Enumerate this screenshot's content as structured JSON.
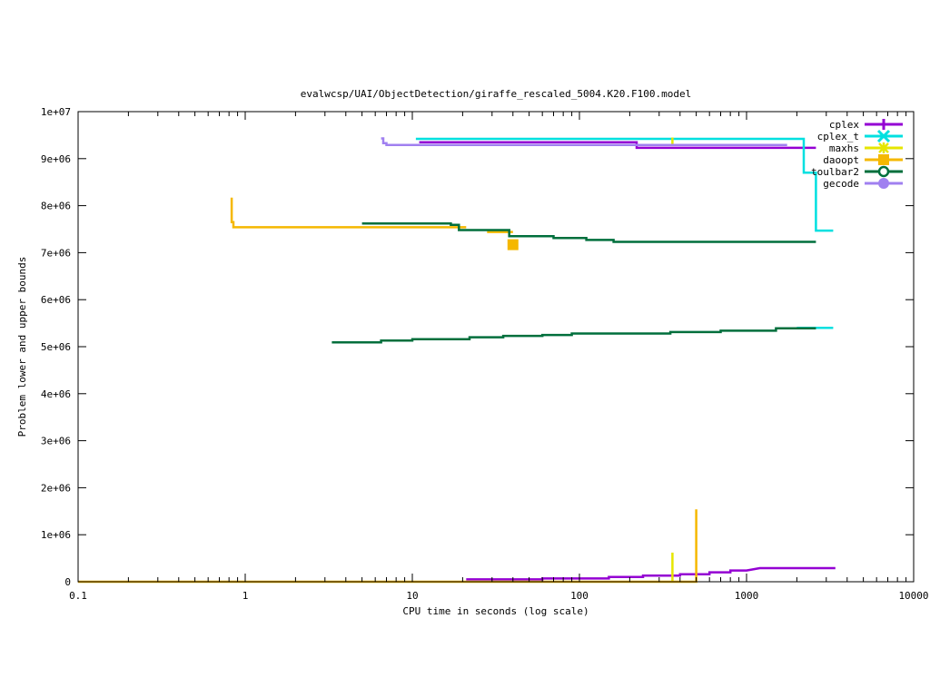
{
  "chart_data": {
    "type": "line",
    "title": "evalwcsp/UAI/ObjectDetection/giraffe_rescaled_5004.K20.F100.model",
    "xlabel": "CPU time in seconds (log scale)",
    "ylabel": "Problem lower and upper bounds",
    "x_scale": "log",
    "xlim": [
      0.1,
      10000
    ],
    "ylim": [
      0,
      10000000
    ],
    "grid": false,
    "legend_position": "top-right",
    "x_ticks": [
      {
        "value": 0.1,
        "label": "0.1"
      },
      {
        "value": 1,
        "label": "1"
      },
      {
        "value": 10,
        "label": "10"
      },
      {
        "value": 100,
        "label": "100"
      },
      {
        "value": 1000,
        "label": "1000"
      },
      {
        "value": 10000,
        "label": "10000"
      }
    ],
    "y_ticks": [
      {
        "value": 0,
        "label": "0"
      },
      {
        "value": 1000000,
        "label": "1e+06"
      },
      {
        "value": 2000000,
        "label": "2e+06"
      },
      {
        "value": 3000000,
        "label": "3e+06"
      },
      {
        "value": 4000000,
        "label": "4e+06"
      },
      {
        "value": 5000000,
        "label": "5e+06"
      },
      {
        "value": 6000000,
        "label": "6e+06"
      },
      {
        "value": 7000000,
        "label": "7e+06"
      },
      {
        "value": 8000000,
        "label": "8e+06"
      },
      {
        "value": 9000000,
        "label": "9e+06"
      },
      {
        "value": 10000000,
        "label": "1e+07"
      }
    ],
    "series": [
      {
        "name": "cplex",
        "color": "#9400d3",
        "marker": "plus",
        "lines": [
          [
            [
              11,
              9350000
            ],
            [
              220,
              9350000
            ],
            [
              220,
              9230000
            ],
            [
              2600,
              9230000
            ]
          ],
          [
            [
              21,
              50000
            ],
            [
              60,
              50000
            ],
            [
              60,
              70000
            ],
            [
              150,
              70000
            ],
            [
              150,
              100000
            ],
            [
              240,
              100000
            ],
            [
              240,
              130000
            ],
            [
              400,
              130000
            ],
            [
              400,
              160000
            ],
            [
              600,
              160000
            ],
            [
              600,
              200000
            ],
            [
              800,
              200000
            ],
            [
              800,
              240000
            ],
            [
              1000,
              240000
            ],
            [
              1200,
              290000
            ],
            [
              3400,
              290000
            ]
          ]
        ]
      },
      {
        "name": "cplex_t",
        "color": "#00e0e0",
        "marker": "x",
        "lines": [
          [
            [
              10.5,
              9420000
            ],
            [
              2200,
              9420000
            ],
            [
              2200,
              8700000
            ],
            [
              2600,
              8700000
            ],
            [
              2600,
              7470000
            ],
            [
              3300,
              7470000
            ]
          ],
          [
            [
              2000,
              5400000
            ],
            [
              3300,
              5400000
            ]
          ]
        ]
      },
      {
        "name": "maxhs",
        "color": "#e6e600",
        "marker": "star",
        "lines": [
          [
            [
              360,
              0
            ],
            [
              360,
              620000
            ]
          ],
          [
            [
              360,
              9300000
            ],
            [
              360,
              9450000
            ]
          ]
        ]
      },
      {
        "name": "daoopt",
        "color": "#f5b800",
        "marker": "square",
        "lines": [
          [
            [
              0.1,
              0
            ],
            [
              500,
              0
            ],
            [
              500,
              1540000
            ]
          ],
          [
            [
              0.83,
              8170000
            ],
            [
              0.83,
              7650000
            ],
            [
              0.85,
              7650000
            ],
            [
              0.85,
              7540000
            ],
            [
              21,
              7540000
            ]
          ],
          [
            [
              28,
              7440000
            ],
            [
              40,
              7440000
            ]
          ]
        ],
        "points": [
          [
            40,
            7170000
          ]
        ]
      },
      {
        "name": "toulbar2",
        "color": "#006f3c",
        "marker": "circle-open",
        "lines": [
          [
            [
              5,
              7620000
            ],
            [
              17,
              7620000
            ],
            [
              17,
              7590000
            ],
            [
              19,
              7590000
            ],
            [
              19,
              7480000
            ],
            [
              38,
              7480000
            ],
            [
              38,
              7350000
            ],
            [
              70,
              7350000
            ],
            [
              70,
              7310000
            ],
            [
              110,
              7310000
            ],
            [
              110,
              7270000
            ],
            [
              160,
              7270000
            ],
            [
              160,
              7230000
            ],
            [
              2600,
              7230000
            ]
          ],
          [
            [
              3.3,
              5090000
            ],
            [
              6.5,
              5090000
            ],
            [
              6.5,
              5130000
            ],
            [
              10,
              5130000
            ],
            [
              10,
              5160000
            ],
            [
              22,
              5160000
            ],
            [
              22,
              5200000
            ],
            [
              35,
              5200000
            ],
            [
              35,
              5230000
            ],
            [
              60,
              5230000
            ],
            [
              60,
              5250000
            ],
            [
              90,
              5250000
            ],
            [
              90,
              5280000
            ],
            [
              350,
              5280000
            ],
            [
              350,
              5310000
            ],
            [
              700,
              5310000
            ],
            [
              700,
              5340000
            ],
            [
              1500,
              5340000
            ],
            [
              1500,
              5390000
            ],
            [
              2600,
              5390000
            ]
          ]
        ]
      },
      {
        "name": "gecode",
        "color": "#a080f0",
        "marker": "circle",
        "lines": [
          [
            [
              6.5,
              9430000
            ],
            [
              6.7,
              9430000
            ],
            [
              6.7,
              9330000
            ],
            [
              7,
              9330000
            ],
            [
              7,
              9290000
            ],
            [
              1750,
              9290000
            ]
          ]
        ]
      }
    ]
  }
}
